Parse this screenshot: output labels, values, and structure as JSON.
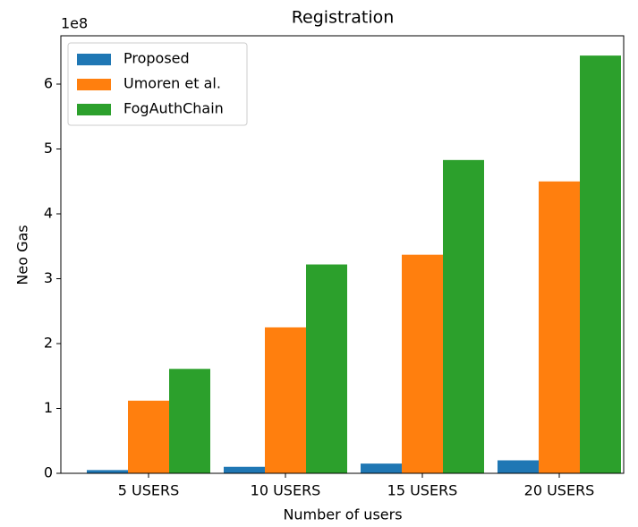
{
  "chart_data": {
    "type": "bar",
    "title": "Registration",
    "x_label": "Number of users",
    "y_label": "Neo Gas",
    "y_offset_label": "1e8",
    "categories": [
      "5 USERS",
      "10 USERS",
      "15 USERS",
      "20 USERS"
    ],
    "series": [
      {
        "name": "Proposed",
        "color": "#1f77b4",
        "values": [
          0.05,
          0.1,
          0.15,
          0.2
        ]
      },
      {
        "name": "Umoren et al.",
        "color": "#ff7f0e",
        "values": [
          1.12,
          2.25,
          3.37,
          4.5
        ]
      },
      {
        "name": "FogAuthChain",
        "color": "#2ca02c",
        "values": [
          1.61,
          3.22,
          4.83,
          6.44
        ]
      }
    ],
    "ylim": [
      0,
      6.745
    ],
    "yticks": [
      0,
      1,
      2,
      3,
      4,
      5,
      6
    ],
    "legend": "upper left"
  }
}
